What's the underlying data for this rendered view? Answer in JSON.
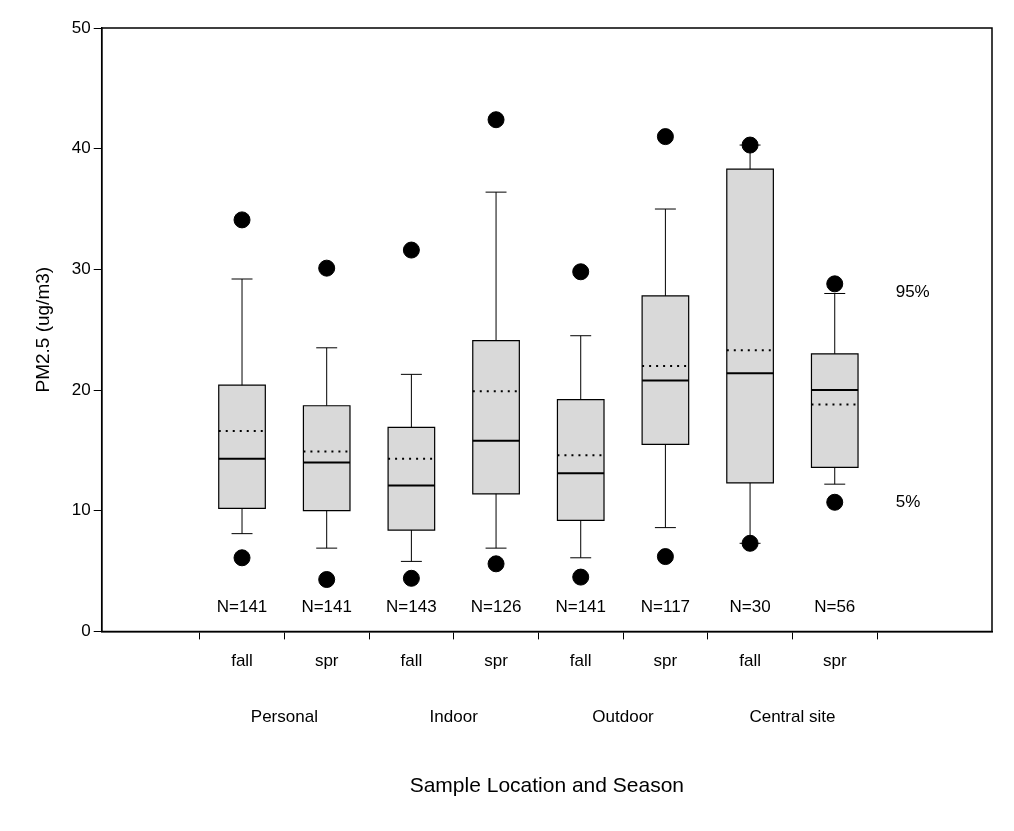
{
  "chart_data": {
    "type": "box",
    "xlabel": "Sample Location and Season",
    "ylabel": "PM2.5 (ug/m3)",
    "categories": [
      "fall",
      "spr",
      "fall",
      "spr",
      "fall",
      "spr",
      "fall",
      "spr"
    ],
    "boxes": [
      {
        "low": 8.1,
        "q1": 10.2,
        "median": 14.3,
        "q3": 20.4,
        "high": 29.2,
        "mean": 16.6,
        "outliers": [
          34.1,
          6.1
        ]
      },
      {
        "low": 6.9,
        "q1": 10.0,
        "median": 14.0,
        "q3": 18.7,
        "high": 23.5,
        "mean": 14.9,
        "outliers": [
          30.1,
          4.3
        ]
      },
      {
        "low": 5.8,
        "q1": 8.4,
        "median": 12.1,
        "q3": 16.9,
        "high": 21.3,
        "mean": 14.3,
        "outliers": [
          31.6,
          4.4
        ]
      },
      {
        "low": 6.9,
        "q1": 11.4,
        "median": 15.8,
        "q3": 24.1,
        "high": 36.4,
        "mean": 19.9,
        "outliers": [
          42.4,
          5.6
        ]
      },
      {
        "low": 6.1,
        "q1": 9.2,
        "median": 13.1,
        "q3": 19.2,
        "high": 24.5,
        "mean": 14.6,
        "outliers": [
          29.8,
          4.5
        ]
      },
      {
        "low": 8.6,
        "q1": 15.5,
        "median": 20.8,
        "q3": 27.8,
        "high": 35.0,
        "mean": 22.0,
        "outliers": [
          41.0,
          6.2
        ]
      },
      {
        "low": 7.3,
        "q1": 12.3,
        "median": 21.4,
        "q3": 38.3,
        "high": 40.3,
        "mean": 23.3,
        "outliers": [
          40.3,
          7.3
        ]
      },
      {
        "low": 12.2,
        "q1": 13.6,
        "median": 20.0,
        "q3": 23.0,
        "high": 28.0,
        "mean": 18.8,
        "outliers": [
          28.8,
          10.7
        ]
      }
    ],
    "color": "#d9d9d9",
    "marker": "circle",
    "grid": false,
    "legend": false,
    "ylim": [
      0,
      50
    ],
    "yticks": [
      0,
      10,
      20,
      30,
      40,
      50
    ],
    "annotations": [
      "N=141",
      "N=141",
      "N=143",
      "N=126",
      "N=141",
      "N=117",
      "N=30",
      "N=56",
      "Personal",
      "Indoor",
      "Outdoor",
      "Central site",
      "95%",
      "5%"
    ]
  }
}
